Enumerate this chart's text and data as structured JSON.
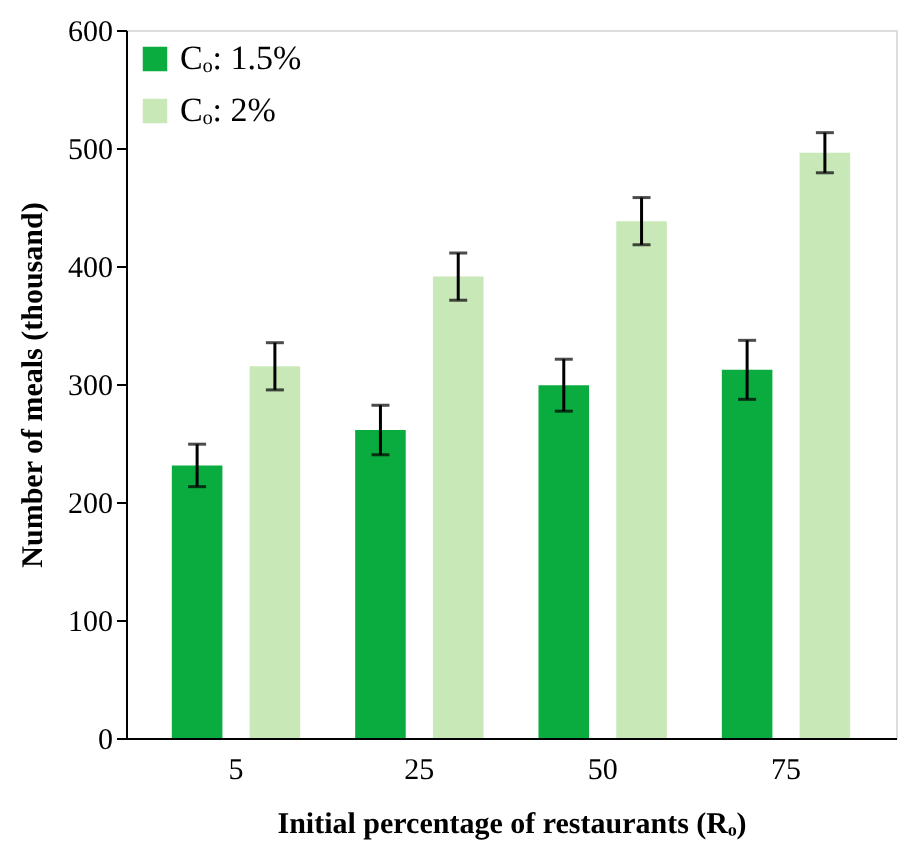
{
  "chart_data": {
    "type": "bar",
    "xlabel": "Initial percentage of restaurants (Rₒ)",
    "ylabel": "Number of meals (thousand)",
    "categories": [
      "5",
      "25",
      "50",
      "75"
    ],
    "series": [
      {
        "name": "Cₒ: 1.5%",
        "color": "#0aab3f",
        "values": [
          231,
          261,
          299,
          312
        ],
        "errors": [
          18,
          21,
          22,
          25
        ]
      },
      {
        "name": "Cₒ: 2%",
        "color": "#c8e8b8",
        "values": [
          315,
          391,
          438,
          496
        ],
        "errors": [
          20,
          20,
          20,
          17
        ]
      }
    ],
    "ylim": [
      0,
      600
    ],
    "yticks": [
      0,
      100,
      200,
      300,
      400,
      500,
      600
    ],
    "grid": false,
    "legend": "top left"
  }
}
